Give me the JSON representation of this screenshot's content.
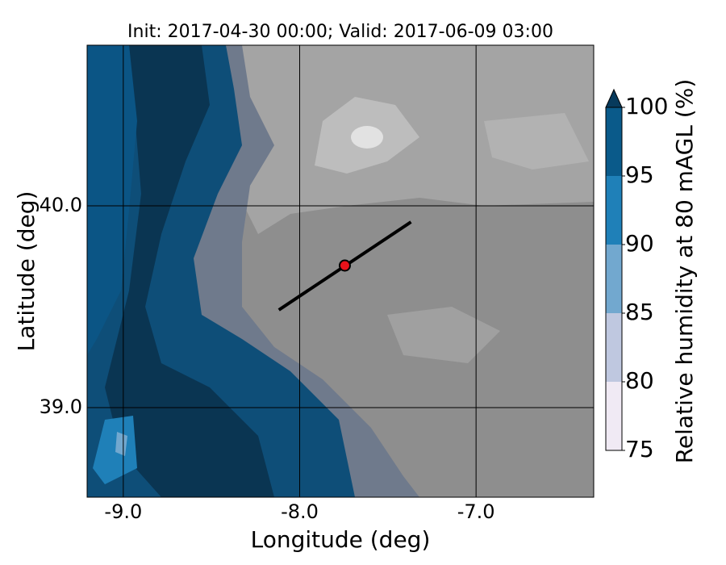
{
  "chart_data": {
    "type": "map",
    "title": "Init: 2017-04-30 00:00; Valid: 2017-06-09 03:00",
    "x_label": "Longitude (deg)",
    "y_label": "Latitude (deg)",
    "xlim": [
      -9.205,
      -6.333
    ],
    "ylim": [
      38.556,
      40.796
    ],
    "xticks": [
      {
        "value": -9,
        "label": "-9.0"
      },
      {
        "value": -8,
        "label": "-8.0"
      },
      {
        "value": -7,
        "label": "-7.0"
      }
    ],
    "yticks": [
      {
        "value": 39,
        "label": "39.0"
      },
      {
        "value": 40,
        "label": "40.0"
      }
    ],
    "grid": true,
    "transect": {
      "lon": [
        -8.118,
        -7.369
      ],
      "lat": [
        39.484,
        39.92
      ],
      "color": "#000000"
    },
    "point": {
      "lon": -7.744,
      "lat": 39.704,
      "color": "#e8121a"
    },
    "colorbar": {
      "label": "Relative humidity at 80 mAGL (%)",
      "ticks": [
        75,
        80,
        85,
        90,
        95,
        100
      ],
      "colors": [
        "#f0eaf4",
        "#bfc8e0",
        "#72a8cf",
        "#1f80b8",
        "#0a5a8a"
      ],
      "extend_color": "#073a5c"
    }
  }
}
